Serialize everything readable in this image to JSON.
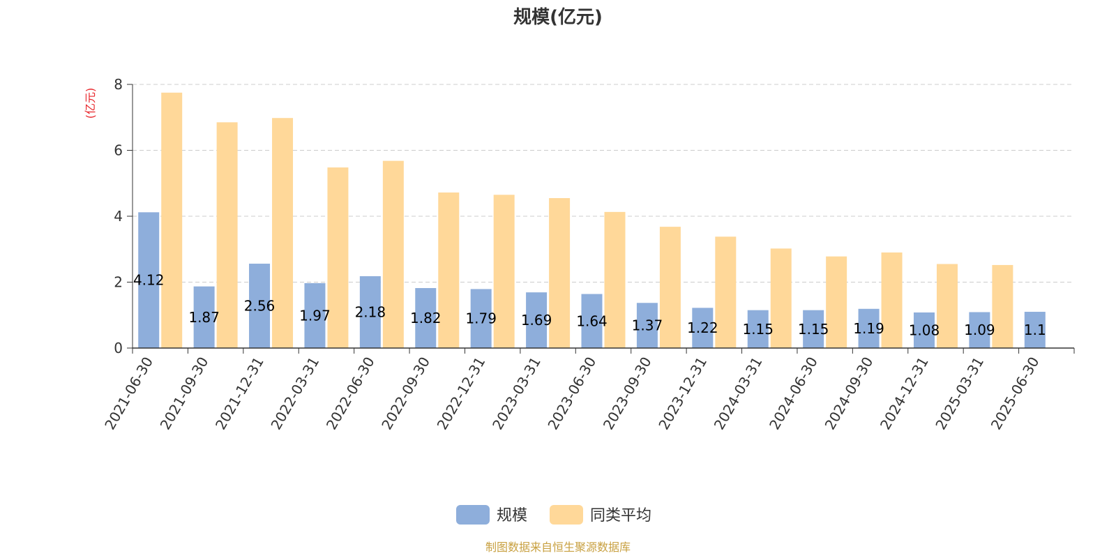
{
  "chart_data": {
    "type": "bar",
    "title": "规模(亿元)",
    "ylabel": "(亿元)",
    "ylim": [
      0,
      8
    ],
    "yticks": [
      0,
      2,
      4,
      6,
      8
    ],
    "grid": true,
    "legend_position": "bottom-center",
    "categories": [
      "2021-06-30",
      "2021-09-30",
      "2021-12-31",
      "2022-03-31",
      "2022-06-30",
      "2022-09-30",
      "2022-12-31",
      "2023-03-31",
      "2023-06-30",
      "2023-09-30",
      "2023-12-31",
      "2024-03-31",
      "2024-06-30",
      "2024-09-30",
      "2024-12-31",
      "2025-03-31",
      "2025-06-30"
    ],
    "series": [
      {
        "name": "规模",
        "color": "#8eaedb",
        "values": [
          4.12,
          1.87,
          2.56,
          1.97,
          2.18,
          1.82,
          1.79,
          1.69,
          1.64,
          1.37,
          1.22,
          1.15,
          1.15,
          1.19,
          1.08,
          1.09,
          1.1
        ],
        "labels": [
          "4.12",
          "1.87",
          "2.56",
          "1.97",
          "2.18",
          "1.82",
          "1.79",
          "1.69",
          "1.64",
          "1.37",
          "1.22",
          "1.15",
          "1.15",
          "1.19",
          "1.08",
          "1.09",
          "1.1"
        ]
      },
      {
        "name": "同类平均",
        "color": "#ffd899",
        "values": [
          7.75,
          6.85,
          6.98,
          5.48,
          5.68,
          4.72,
          4.65,
          4.55,
          4.13,
          3.68,
          3.38,
          3.02,
          2.78,
          2.9,
          2.55,
          2.52,
          null
        ]
      }
    ]
  },
  "source": "制图数据来自恒生聚源数据库",
  "colors": {
    "unit": "#e8262b",
    "source": "#c8a040",
    "grid": "#cccccc",
    "axis": "#333333"
  }
}
